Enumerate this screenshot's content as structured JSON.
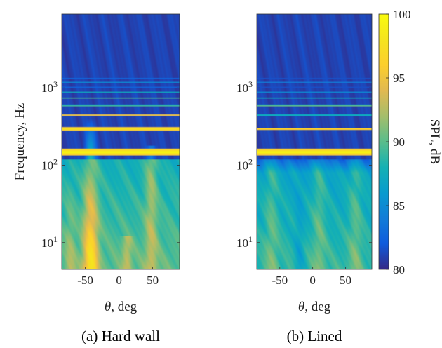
{
  "chart_data": [
    {
      "type": "heatmap",
      "id": "hard-wall",
      "caption": "(a) Hard wall",
      "xlabel": "θ, deg",
      "ylabel": "Frequency, Hz",
      "xlim": [
        -85,
        90
      ],
      "ylim": [
        4.5,
        9000
      ],
      "yscale": "log",
      "x_ticks": [
        -50,
        0,
        50
      ],
      "x_tick_labels": [
        "-50",
        "0",
        "50"
      ],
      "y_ticks": [
        10,
        100,
        1000
      ],
      "y_tick_labels": [
        "10^1",
        "10^2",
        "10^3"
      ],
      "tones_hz": [
        {
          "f": 148,
          "spl": 100,
          "width": 0.05
        },
        {
          "f": 295,
          "spl": 99,
          "width": 0.025
        },
        {
          "f": 443,
          "spl": 97,
          "width": 0.012
        },
        {
          "f": 590,
          "spl": 92,
          "width": 0.009
        },
        {
          "f": 740,
          "spl": 90,
          "width": 0.008
        },
        {
          "f": 885,
          "spl": 89,
          "width": 0.007
        },
        {
          "f": 1030,
          "spl": 87,
          "width": 0.006
        },
        {
          "f": 1180,
          "spl": 85,
          "width": 0.006
        },
        {
          "f": 1330,
          "spl": 84,
          "width": 0.005
        },
        {
          "f": 1480,
          "spl": 83,
          "width": 0.005
        }
      ],
      "lobes_deg": [
        -42,
        48
      ],
      "broadband_peak_spl": 97
    },
    {
      "type": "heatmap",
      "id": "lined",
      "caption": "(b) Lined",
      "xlabel": "θ, deg",
      "ylabel": "",
      "xlim": [
        -85,
        90
      ],
      "ylim": [
        4.5,
        9000
      ],
      "yscale": "log",
      "x_ticks": [
        -50,
        0,
        50
      ],
      "x_tick_labels": [
        "-50",
        "0",
        "50"
      ],
      "y_ticks": [
        10,
        100,
        1000
      ],
      "y_tick_labels": [
        "10^1",
        "10^2",
        "10^3"
      ],
      "tones_hz": [
        {
          "f": 148,
          "spl": 100,
          "width": 0.045
        },
        {
          "f": 295,
          "spl": 98,
          "width": 0.018
        },
        {
          "f": 443,
          "spl": 91,
          "width": 0.01
        },
        {
          "f": 590,
          "spl": 93,
          "width": 0.009
        },
        {
          "f": 740,
          "spl": 88,
          "width": 0.007
        },
        {
          "f": 885,
          "spl": 87,
          "width": 0.006
        },
        {
          "f": 1030,
          "spl": 86,
          "width": 0.006
        },
        {
          "f": 1180,
          "spl": 84,
          "width": 0.005
        },
        {
          "f": 1330,
          "spl": 83,
          "width": 0.005
        }
      ],
      "lobes_deg": [
        -62,
        10,
        65
      ],
      "broadband_peak_spl": 91
    }
  ],
  "colorbar": {
    "label": "SPL, dB",
    "min": 80,
    "max": 100,
    "ticks": [
      80,
      85,
      90,
      95,
      100
    ],
    "tick_labels": [
      "80",
      "85",
      "90",
      "95",
      "100"
    ],
    "colormap": "parula"
  }
}
